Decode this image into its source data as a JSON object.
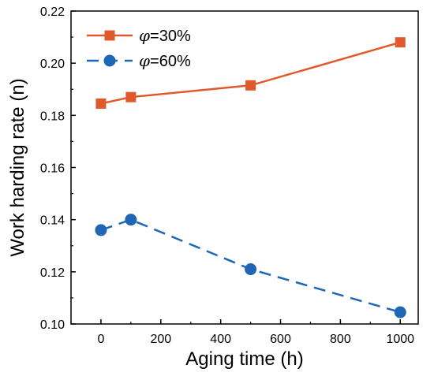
{
  "chart_data": {
    "type": "line",
    "title": "",
    "xlabel": "Aging time (h)",
    "ylabel": "Work harding rate (n)",
    "xlim": [
      -100,
      1060
    ],
    "ylim": [
      0.1,
      0.22
    ],
    "xticks": [
      0,
      200,
      400,
      600,
      800,
      1000
    ],
    "yticks": [
      0.1,
      0.12,
      0.14,
      0.16,
      0.18,
      0.2,
      0.22
    ],
    "xtick_labels": [
      "0",
      "200",
      "400",
      "600",
      "800",
      "1000"
    ],
    "ytick_labels": [
      "0.10",
      "0.12",
      "0.14",
      "0.16",
      "0.18",
      "0.20",
      "0.22"
    ],
    "grid": false,
    "legend_position": "top-left",
    "series": [
      {
        "name": "φ=30%",
        "name_symbol": "φ",
        "name_rest": "=30%",
        "color": "#e0592b",
        "marker": "square",
        "line_style": "solid",
        "x": [
          0,
          100,
          500,
          1000
        ],
        "y": [
          0.1845,
          0.187,
          0.1915,
          0.208
        ]
      },
      {
        "name": "φ=60%",
        "name_symbol": "φ",
        "name_rest": "=60%",
        "color": "#1f66b4",
        "marker": "circle",
        "line_style": "dashed",
        "x": [
          0,
          100,
          500,
          1000
        ],
        "y": [
          0.136,
          0.14,
          0.121,
          0.1045
        ]
      }
    ]
  }
}
